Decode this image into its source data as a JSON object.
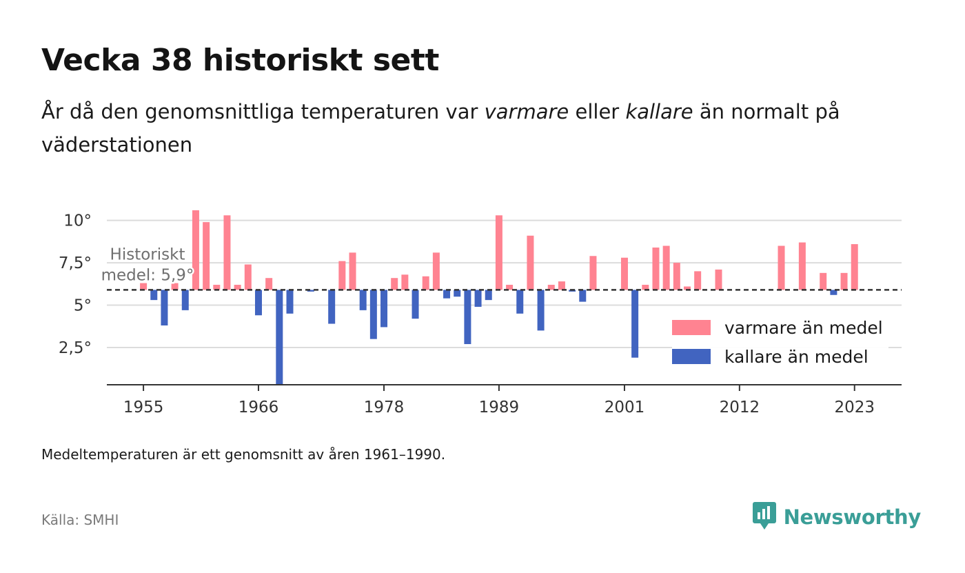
{
  "header": {
    "title": "Vecka 38 historiskt sett",
    "subtitle_part1": "År då den genomsnittliga temperaturen var ",
    "subtitle_warm": "varmare",
    "subtitle_part2": " eller ",
    "subtitle_cold": "kallare",
    "subtitle_part3": " än normalt på väderstationen"
  },
  "footer": {
    "note": "Medeltemperaturen är ett genomsnitt av åren 1961–1990.",
    "source": "Källa: SMHI",
    "brand": "Newsworthy"
  },
  "colors": {
    "warm": "#ff8391",
    "cold": "#4164c0",
    "brand": "#3a9e97"
  },
  "chart_data": {
    "type": "bar",
    "baseline": 5.9,
    "baseline_label_line1": "Historiskt",
    "baseline_label_line2": "medel: 5,9°",
    "ylim": [
      0.3,
      10.8
    ],
    "xlim": [
      1951.5,
      2027.5
    ],
    "y_ticks": [
      {
        "value": 2.5,
        "label": "2,5°"
      },
      {
        "value": 5,
        "label": "5°"
      },
      {
        "value": 7.5,
        "label": "7,5°"
      },
      {
        "value": 10,
        "label": "10°"
      }
    ],
    "x_ticks": [
      {
        "value": 1955,
        "label": "1955"
      },
      {
        "value": 1966,
        "label": "1966"
      },
      {
        "value": 1978,
        "label": "1978"
      },
      {
        "value": 1989,
        "label": "1989"
      },
      {
        "value": 2001,
        "label": "2001"
      },
      {
        "value": 2012,
        "label": "2012"
      },
      {
        "value": 2023,
        "label": "2023"
      }
    ],
    "legend": {
      "position": "right",
      "warm_label": "varmare än medel",
      "cold_label": "kallare än medel"
    },
    "series": [
      {
        "x": 1955,
        "y": 6.3
      },
      {
        "x": 1956,
        "y": 5.3
      },
      {
        "x": 1957,
        "y": 3.8
      },
      {
        "x": 1958,
        "y": 6.3
      },
      {
        "x": 1959,
        "y": 4.7
      },
      {
        "x": 1960,
        "y": 10.6
      },
      {
        "x": 1961,
        "y": 9.9
      },
      {
        "x": 1962,
        "y": 6.2
      },
      {
        "x": 1963,
        "y": 10.3
      },
      {
        "x": 1964,
        "y": 6.2
      },
      {
        "x": 1965,
        "y": 7.4
      },
      {
        "x": 1966,
        "y": 4.4
      },
      {
        "x": 1967,
        "y": 6.6
      },
      {
        "x": 1968,
        "y": 0.3
      },
      {
        "x": 1969,
        "y": 4.5
      },
      {
        "x": 1971,
        "y": 5.8
      },
      {
        "x": 1973,
        "y": 3.9
      },
      {
        "x": 1974,
        "y": 7.6
      },
      {
        "x": 1975,
        "y": 8.1
      },
      {
        "x": 1976,
        "y": 4.7
      },
      {
        "x": 1977,
        "y": 3.0
      },
      {
        "x": 1978,
        "y": 3.7
      },
      {
        "x": 1979,
        "y": 6.6
      },
      {
        "x": 1980,
        "y": 6.8
      },
      {
        "x": 1981,
        "y": 4.2
      },
      {
        "x": 1982,
        "y": 6.7
      },
      {
        "x": 1983,
        "y": 8.1
      },
      {
        "x": 1984,
        "y": 5.4
      },
      {
        "x": 1985,
        "y": 5.5
      },
      {
        "x": 1986,
        "y": 2.7
      },
      {
        "x": 1987,
        "y": 4.9
      },
      {
        "x": 1988,
        "y": 5.3
      },
      {
        "x": 1989,
        "y": 10.3
      },
      {
        "x": 1990,
        "y": 6.2
      },
      {
        "x": 1991,
        "y": 4.5
      },
      {
        "x": 1992,
        "y": 9.1
      },
      {
        "x": 1993,
        "y": 3.5
      },
      {
        "x": 1994,
        "y": 6.2
      },
      {
        "x": 1995,
        "y": 6.4
      },
      {
        "x": 1996,
        "y": 5.8
      },
      {
        "x": 1997,
        "y": 5.2
      },
      {
        "x": 1998,
        "y": 7.9
      },
      {
        "x": 2001,
        "y": 7.8
      },
      {
        "x": 2002,
        "y": 1.9
      },
      {
        "x": 2003,
        "y": 6.2
      },
      {
        "x": 2004,
        "y": 8.4
      },
      {
        "x": 2005,
        "y": 8.5
      },
      {
        "x": 2006,
        "y": 7.5
      },
      {
        "x": 2007,
        "y": 6.1
      },
      {
        "x": 2008,
        "y": 7.0
      },
      {
        "x": 2010,
        "y": 7.1
      },
      {
        "x": 2016,
        "y": 8.5
      },
      {
        "x": 2018,
        "y": 8.7
      },
      {
        "x": 2020,
        "y": 6.9
      },
      {
        "x": 2021,
        "y": 5.6
      },
      {
        "x": 2022,
        "y": 6.9
      },
      {
        "x": 2023,
        "y": 8.6
      }
    ]
  }
}
